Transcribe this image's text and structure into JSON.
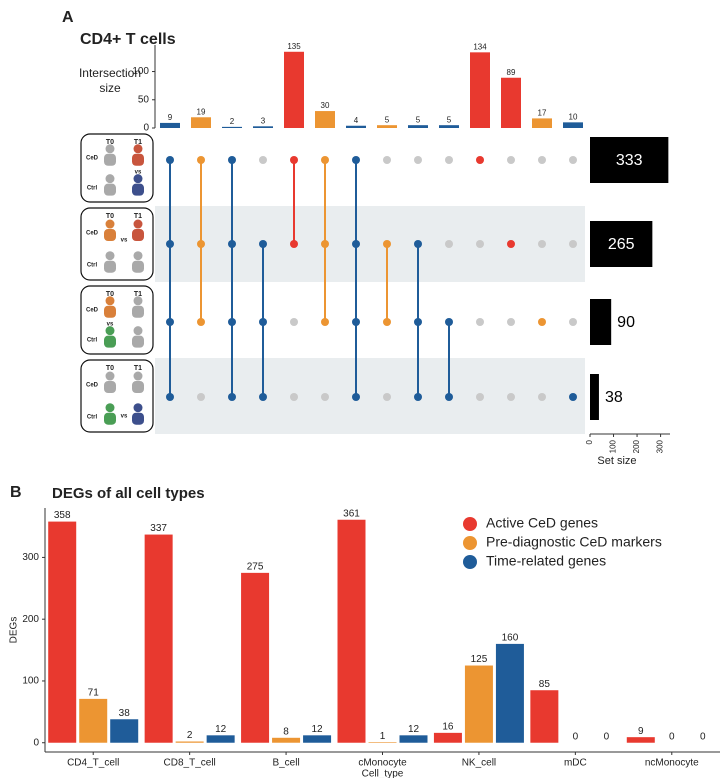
{
  "chart_data": [
    {
      "type": "upset",
      "panel": "A",
      "title": "CD4+ T cells",
      "ylabel": "Intersection size",
      "values": [
        9,
        19,
        2,
        3,
        135,
        30,
        4,
        5,
        5,
        5,
        134,
        89,
        17,
        10
      ],
      "colors": [
        "#1f5c99",
        "#ec9532",
        "#1f5c99",
        "#1f5c99",
        "#e8392f",
        "#ec9532",
        "#1f5c99",
        "#ec9532",
        "#1f5c99",
        "#1f5c99",
        "#e8392f",
        "#e8392f",
        "#ec9532",
        "#1f5c99"
      ],
      "intersections": [
        [
          0,
          1,
          2,
          3
        ],
        [
          0,
          1,
          2
        ],
        [
          0,
          1,
          2,
          3
        ],
        [
          1,
          2,
          3
        ],
        [
          0,
          1
        ],
        [
          0,
          1,
          2
        ],
        [
          0,
          1,
          2,
          3
        ],
        [
          1,
          2
        ],
        [
          1,
          2,
          3
        ],
        [
          2,
          3
        ],
        [
          0
        ],
        [
          1
        ],
        [
          2
        ],
        [
          3
        ]
      ],
      "ylim": [
        0,
        147
      ],
      "yticks": [
        0,
        50,
        100
      ],
      "set_sizes": [
        333,
        265,
        90,
        38
      ],
      "xlim": [
        0,
        340
      ],
      "xticks": [
        0,
        100,
        200,
        300
      ],
      "xlabel": "Set size",
      "set_labels": [
        {
          "t0": "T0",
          "t1": "T1",
          "ced": "CeD",
          "ctrl": "Ctrl",
          "vs": "vs"
        },
        {
          "t0": "T0",
          "t1": "T1",
          "ced": "CeD",
          "ctrl": "Ctrl",
          "vs": "vs"
        },
        {
          "t0": "T0",
          "t1": "T1",
          "ced": "CeD",
          "ctrl": "Ctrl",
          "vs": "vs"
        },
        {
          "t0": "T0",
          "t1": "T1",
          "ced": "CeD",
          "ctrl": "Ctrl",
          "vs": "vs"
        }
      ]
    },
    {
      "type": "bar",
      "panel": "B",
      "title": "DEGs of all cell types",
      "categories": [
        "CD4_T_cell",
        "CD8_T_cell",
        "B_cell",
        "cMonocyte",
        "NK_cell",
        "mDC",
        "ncMonocyte"
      ],
      "series": [
        {
          "name": "Active CeD genes",
          "color": "#e8392f",
          "values": [
            358,
            337,
            275,
            361,
            16,
            85,
            9
          ]
        },
        {
          "name": "Pre-diagnostic CeD markers",
          "color": "#ec9532",
          "values": [
            71,
            2,
            8,
            1,
            125,
            0,
            0
          ]
        },
        {
          "name": "Time-related genes",
          "color": "#1f5c99",
          "values": [
            38,
            12,
            12,
            12,
            160,
            0,
            0
          ]
        }
      ],
      "ylim": [
        -15,
        380
      ],
      "yticks": [
        0,
        100,
        200,
        300
      ],
      "ylabel": "DEGs",
      "xlabel": "Cell_type",
      "legend": "upper right"
    }
  ]
}
